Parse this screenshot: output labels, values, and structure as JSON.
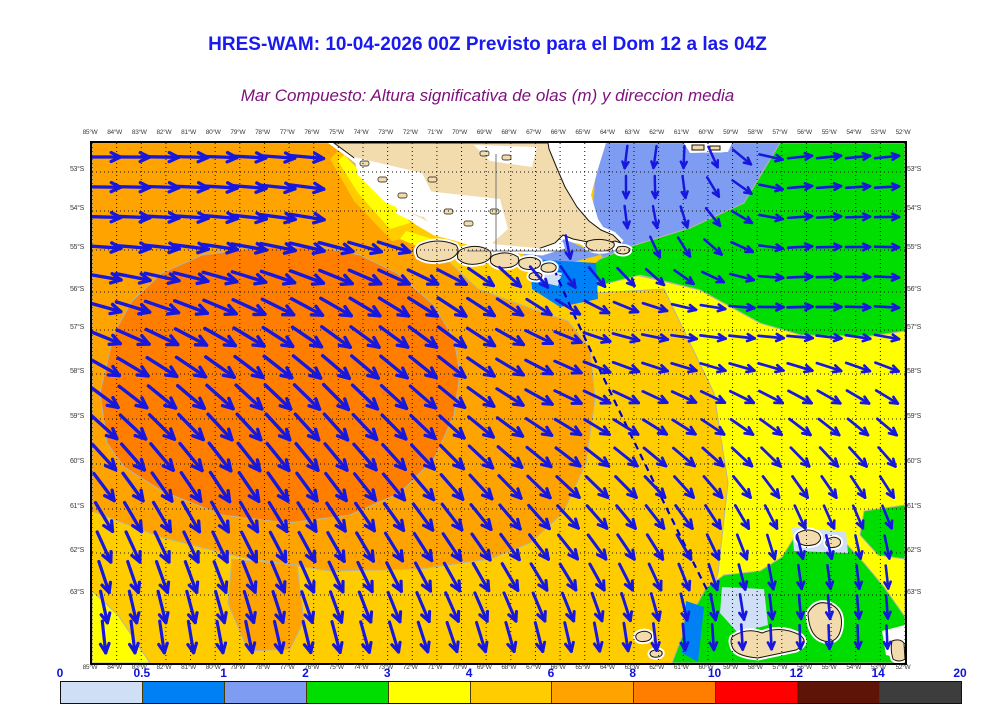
{
  "title": "HRES-WAM: 10-04-2026 00Z Previsto para el Dom 12 a las 04Z",
  "subtitle": "Mar Compuesto: Altura significativa de olas (m) y direccion media",
  "palette": {
    "c00_05": "#cfdff5",
    "c05_1": "#0080f5",
    "c1_2": "#7e9df2",
    "c2_3": "#00dd00",
    "c3_4": "#ffff00",
    "c4_6": "#ffcc00",
    "c6_8": "#ffa300",
    "c8_10": "#ff7e00",
    "c10_12": "#ff0000",
    "c12_14": "#5e1407",
    "c14_20": "#3d3d3d",
    "land": "#f2dcae",
    "coast": "#1a1208",
    "arrow": "#1717dd",
    "grid": "#111111",
    "route": "#0000cc",
    "contour": "#b5b5a5"
  },
  "axis": {
    "lons": [
      "85°W",
      "84°W",
      "83°W",
      "82°W",
      "81°W",
      "80°W",
      "79°W",
      "78°W",
      "77°W",
      "76°W",
      "75°W",
      "74°W",
      "73°W",
      "72°W",
      "71°W",
      "70°W",
      "69°W",
      "68°W",
      "67°W",
      "66°W",
      "65°W",
      "64°W",
      "63°W",
      "62°W",
      "61°W",
      "60°W",
      "59°W",
      "58°W",
      "57°W",
      "56°W",
      "55°W",
      "54°W",
      "53°W",
      "52°W"
    ],
    "lats": [
      "53°S",
      "54°S",
      "55°S",
      "56°S",
      "57°S",
      "58°S",
      "59°S",
      "60°S",
      "61°S",
      "62°S",
      "63°S"
    ],
    "lat_y_page": [
      170,
      209,
      248,
      290,
      328,
      372,
      417,
      462,
      507,
      551,
      593
    ]
  },
  "colorbar": {
    "labels": [
      "0",
      "0.5",
      "1",
      "2",
      "3",
      "4",
      "6",
      "8",
      "10",
      "12",
      "14",
      "20"
    ],
    "color_keys": [
      "c00_05",
      "c05_1",
      "c1_2",
      "c2_3",
      "c3_4",
      "c4_6",
      "c6_8",
      "c8_10",
      "c10_12",
      "c12_14",
      "c14_20"
    ]
  },
  "chart_data": {
    "type": "heatmap",
    "subtype": "vector_field_wave_map",
    "title": "HRES-WAM: 10-04-2026 00Z Previsto para el Dom 12 a las 04Z",
    "field_label": "Altura significativa de olas (m) y direccion media",
    "lon_range_deg_w": [
      85,
      52
    ],
    "lat_range_deg_s": [
      53,
      63
    ],
    "height_scale_m": [
      0,
      0.5,
      1,
      2,
      3,
      4,
      6,
      8,
      10,
      12,
      14,
      20
    ],
    "regions": [
      {
        "level_m": "8-10",
        "location": "large blob west-central Pacific sector"
      },
      {
        "level_m": "6-8",
        "location": "broad northwest and west sector around the blob, small lobe south-center"
      },
      {
        "level_m": "4-6",
        "location": "base field across center and south"
      },
      {
        "level_m": "3-4",
        "location": "eastern Atlantic sector south of 57S, southwest corner wedge, coastal fringe NW"
      },
      {
        "level_m": "2-3",
        "location": "northeast corner, and southeast corner around South Shetland islands"
      },
      {
        "level_m": "1-2",
        "location": "Atlantic shelf northeast of Tierra del Fuego"
      },
      {
        "level_m": "0.5-1",
        "location": "sheltered patches south of Cape Horn and near SE islands"
      },
      {
        "level_m": "0-0.5",
        "location": "small patches beside islands"
      }
    ],
    "route_line": {
      "from_lon_w_lat_s": [
        66.2,
        55.5
      ],
      "to_lon_w_lat_s": [
        60.0,
        62.9
      ],
      "style": "dashed"
    },
    "arrow_grid": {
      "u": [
        0.02,
        0.16,
        0.3,
        0.44,
        0.58,
        0.72,
        0.86,
        1.0
      ],
      "v": [
        0.02,
        0.18,
        0.34,
        0.5,
        0.65,
        0.8,
        0.97
      ],
      "angles_deg_cw_from_east": [
        [
          0,
          2,
          6,
          10,
          95,
          100,
          -6,
          -6
        ],
        [
          2,
          6,
          12,
          18,
          88,
          70,
          -4,
          2
        ],
        [
          18,
          26,
          33,
          36,
          22,
          4,
          -2,
          5
        ],
        [
          38,
          43,
          46,
          40,
          26,
          26,
          30,
          34
        ],
        [
          52,
          56,
          52,
          48,
          42,
          46,
          52,
          56
        ],
        [
          68,
          66,
          62,
          58,
          53,
          62,
          80,
          83
        ],
        [
          86,
          81,
          77,
          73,
          80,
          88,
          89,
          88
        ]
      ],
      "magnitudes": [
        [
          0.9,
          0.95,
          0.9,
          0.7,
          0.45,
          0.4,
          0.5,
          0.5
        ],
        [
          0.95,
          1,
          1,
          0.8,
          0.45,
          0.4,
          0.5,
          0.5
        ],
        [
          1,
          1,
          1,
          0.95,
          0.7,
          0.55,
          0.55,
          0.5
        ],
        [
          1,
          1,
          1,
          0.9,
          0.75,
          0.6,
          0.6,
          0.55
        ],
        [
          0.95,
          1,
          0.95,
          0.9,
          0.8,
          0.7,
          0.6,
          0.55
        ],
        [
          0.9,
          0.9,
          0.9,
          0.85,
          0.8,
          0.7,
          0.5,
          0.45
        ],
        [
          0.85,
          0.85,
          0.85,
          0.8,
          0.75,
          0.6,
          0.5,
          0.45
        ]
      ]
    }
  }
}
